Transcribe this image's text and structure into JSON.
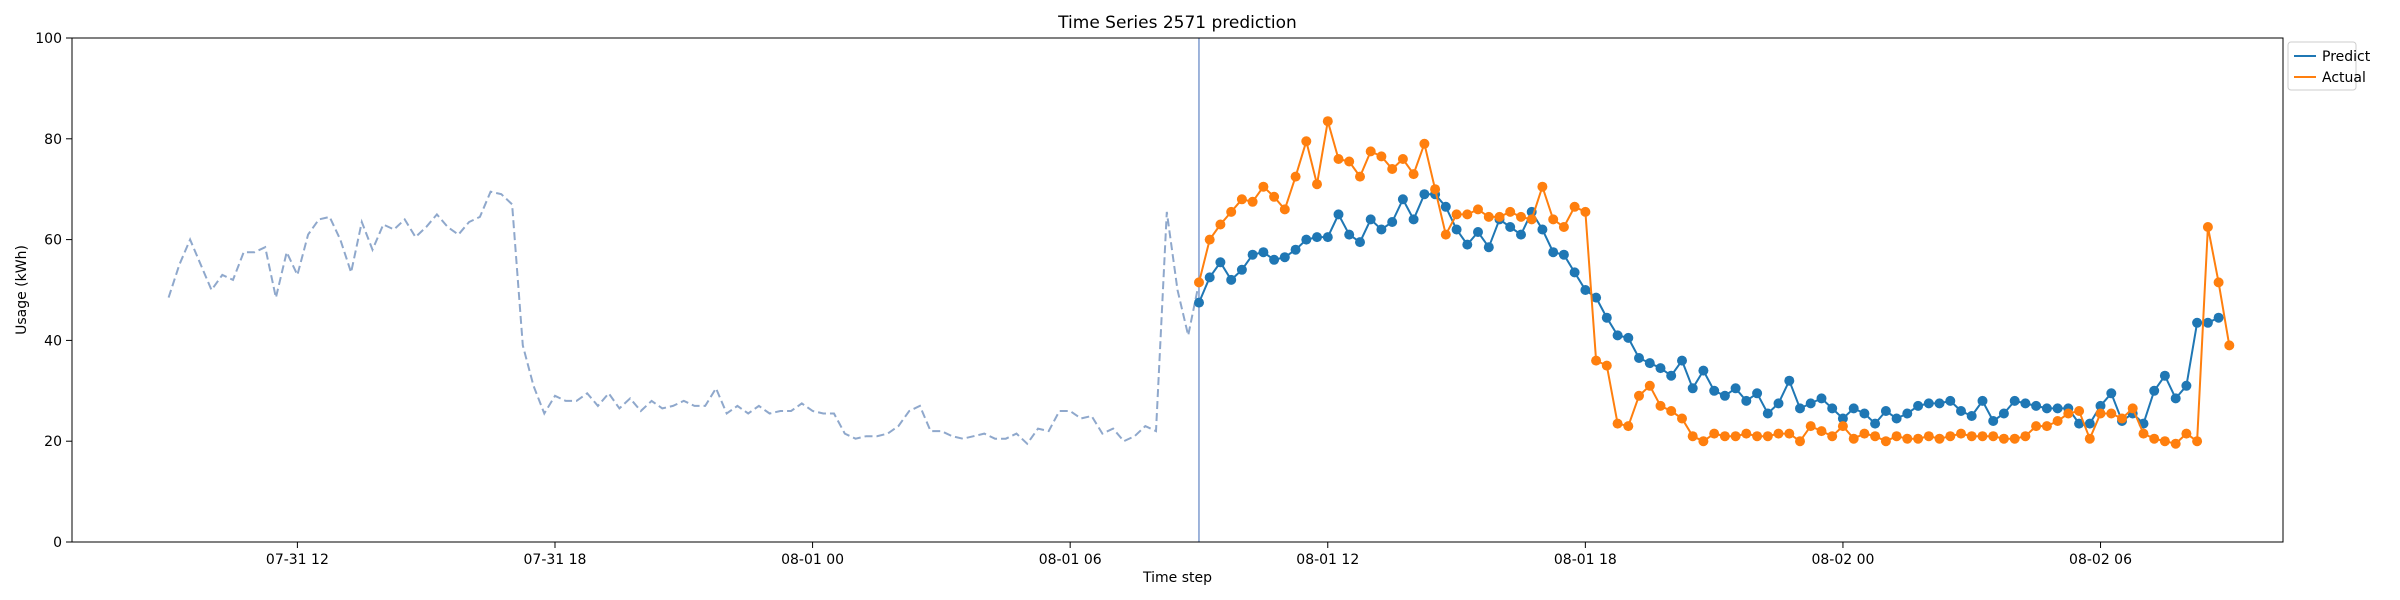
{
  "chart_data": {
    "type": "line",
    "title": "Time Series 2571 prediction",
    "xlabel": "Time step",
    "ylabel": "Usage (kWh)",
    "ylim": [
      0,
      100
    ],
    "xlim": [
      "2024-07-31 06:45",
      "2024-08-02 10:15"
    ],
    "yticks": [
      0,
      20,
      40,
      60,
      80,
      100
    ],
    "xticks": [
      {
        "t": "2024-07-31 12:00",
        "label": "07-31 12"
      },
      {
        "t": "2024-07-31 18:00",
        "label": "07-31 18"
      },
      {
        "t": "2024-08-01 00:00",
        "label": "08-01 00"
      },
      {
        "t": "2024-08-01 06:00",
        "label": "08-01 06"
      },
      {
        "t": "2024-08-01 12:00",
        "label": "08-01 12"
      },
      {
        "t": "2024-08-01 18:00",
        "label": "08-01 18"
      },
      {
        "t": "2024-08-02 00:00",
        "label": "08-02 00"
      },
      {
        "t": "2024-08-02 06:00",
        "label": "08-02 06"
      }
    ],
    "grid": false,
    "legend_position": "upper-right-outside",
    "forecast_start": "2024-08-01 09:00",
    "history": {
      "color": "#8fa8cc",
      "style": "dashed",
      "start": "2024-07-31 09:00",
      "step_minutes": 15,
      "values": [
        48.5,
        55,
        60,
        55,
        50,
        53,
        52,
        57.5,
        57.5,
        58.5,
        48.5,
        57.5,
        53,
        61,
        64,
        64.5,
        60,
        53.5,
        63.5,
        58,
        63,
        62,
        64,
        60.5,
        62.5,
        65,
        62.5,
        61,
        63.5,
        64.5,
        69.5,
        69,
        67,
        39,
        31,
        25.5,
        29,
        28,
        28,
        29.5,
        27,
        29.5,
        26.5,
        28.5,
        26,
        28,
        26.5,
        27,
        28,
        27,
        27,
        30.5,
        25.5,
        27,
        25.5,
        27,
        25.5,
        26,
        26,
        27.5,
        26,
        25.5,
        25.5,
        21.5,
        20.5,
        21,
        21,
        21.5,
        23,
        26,
        27,
        22,
        22,
        21,
        20.5,
        21,
        21.5,
        20.5,
        20.5,
        21.5,
        19.5,
        22.5,
        22,
        26,
        26,
        24.5,
        25,
        21.5,
        22.5,
        20,
        21,
        23,
        22,
        65.5,
        50,
        41,
        51.5
      ]
    },
    "series": [
      {
        "name": "Predict",
        "color": "#1f77b4",
        "start": "2024-08-01 09:00",
        "step_minutes": 15,
        "values": [
          47.5,
          52.5,
          55.5,
          52,
          54,
          57,
          57.5,
          56,
          56.5,
          58,
          60,
          60.5,
          60.5,
          65,
          61,
          59.5,
          64,
          62,
          63.5,
          68,
          64,
          69,
          69,
          66.5,
          62,
          59,
          61.5,
          58.5,
          64,
          62.5,
          61,
          65.5,
          62,
          57.5,
          57,
          53.5,
          50,
          48.5,
          44.5,
          41,
          40.5,
          36.5,
          35.5,
          34.5,
          33,
          36,
          30.5,
          34,
          30,
          29,
          30.5,
          28,
          29.5,
          25.5,
          27.5,
          32,
          26.5,
          27.5,
          28.5,
          26.5,
          24.5,
          26.5,
          25.5,
          23.5,
          26,
          24.5,
          25.5,
          27,
          27.5,
          27.5,
          28,
          26,
          25,
          28,
          24,
          25.5,
          28,
          27.5,
          27,
          26.5,
          26.5,
          26.5,
          23.5,
          23.5,
          27,
          29.5,
          24,
          25.5,
          23.5,
          30,
          33,
          28.5,
          31,
          43.5,
          43.5,
          44.5
        ]
      },
      {
        "name": "Actual",
        "color": "#ff7f0e",
        "start": "2024-08-01 09:00",
        "step_minutes": 15,
        "values": [
          51.5,
          60,
          63,
          65.5,
          68,
          67.5,
          70.5,
          68.5,
          66,
          72.5,
          79.5,
          71,
          83.5,
          76,
          75.5,
          72.5,
          77.5,
          76.5,
          74,
          76,
          73,
          79,
          70,
          61,
          65,
          65,
          66,
          64.5,
          64.5,
          65.5,
          64.5,
          64,
          70.5,
          64,
          62.5,
          66.5,
          65.5,
          36,
          35,
          23.5,
          23,
          29,
          31,
          27,
          26,
          24.5,
          21,
          20,
          21.5,
          21,
          21,
          21.5,
          21,
          21,
          21.5,
          21.5,
          20,
          23,
          22,
          21,
          23,
          20.5,
          21.5,
          21,
          20,
          21,
          20.5,
          20.5,
          21,
          20.5,
          21,
          21.5,
          21,
          21,
          21,
          20.5,
          20.5,
          21,
          23,
          23,
          24,
          25.5,
          26,
          20.5,
          25.5,
          25.5,
          24.5,
          26.5,
          21.5,
          20.5,
          20,
          19.5,
          21.5,
          20,
          62.5,
          51.5,
          39
        ]
      }
    ]
  }
}
